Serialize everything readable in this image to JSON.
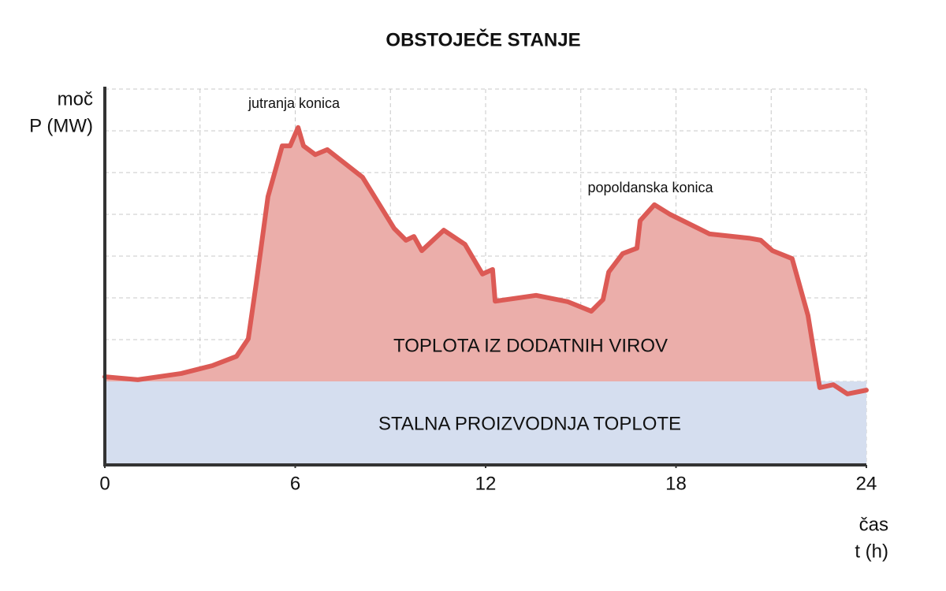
{
  "chart_data": {
    "type": "area",
    "title": "OBSTOJEČE STANJE",
    "y_label": [
      "moč",
      "P (MW)"
    ],
    "x_label": [
      "čas",
      "t (h)"
    ],
    "xlim": [
      0,
      24
    ],
    "xticks": [
      0,
      6,
      12,
      18,
      24
    ],
    "ylim": [
      0,
      9
    ],
    "grid": true,
    "baseline": {
      "name": "STALNA PROIZVODNJA TOPLOTE",
      "color": "#d5deef",
      "value": 2
    },
    "x": [
      0,
      1.04,
      2.41,
      3.4,
      4.15,
      4.52,
      4.77,
      5.14,
      5.59,
      5.84,
      6.09,
      6.26,
      6.63,
      7.01,
      8.12,
      9.12,
      9.49,
      9.74,
      9.99,
      10.68,
      11.35,
      11.9,
      12.22,
      12.3,
      13.59,
      14.58,
      15.33,
      15.7,
      15.88,
      16.32,
      16.77,
      16.87,
      17.32,
      17.81,
      19.06,
      20.3,
      20.67,
      21.04,
      21.66,
      22.16,
      22.53,
      22.96,
      23.4,
      24
    ],
    "series": [
      {
        "name": "TOPLOTA IZ DODATNIH VIROV",
        "color": "#dc5a55",
        "fill": "#ebaeaa",
        "values": [
          2.11,
          2.04,
          2.19,
          2.38,
          2.6,
          3.02,
          4.34,
          6.42,
          7.64,
          7.64,
          8.08,
          7.64,
          7.43,
          7.55,
          6.89,
          5.66,
          5.38,
          5.47,
          5.13,
          5.62,
          5.28,
          4.57,
          4.68,
          3.92,
          4.06,
          3.91,
          3.68,
          3.96,
          4.62,
          5.06,
          5.19,
          5.85,
          6.23,
          6.0,
          5.53,
          5.43,
          5.38,
          5.13,
          4.94,
          3.58,
          1.85,
          1.92,
          1.7,
          1.79
        ]
      }
    ],
    "annotations": [
      "jutranja konica",
      "popoldanska konica"
    ]
  }
}
